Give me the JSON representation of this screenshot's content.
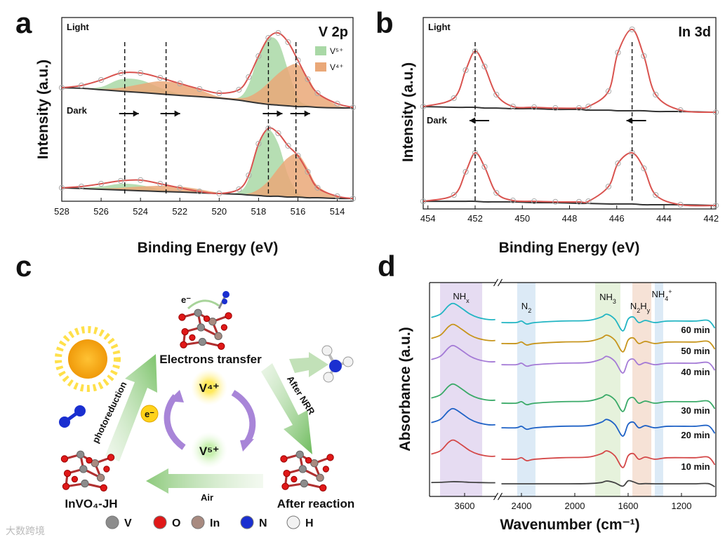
{
  "chart_data": [
    {
      "type": "line",
      "panel": "a",
      "title": "V 2p",
      "xlabel": "Binding Energy (eV)",
      "ylabel": "Intensity (a.u.)",
      "xlim": [
        528,
        513.2
      ],
      "xticks": [
        528,
        526,
        524,
        522,
        520,
        518,
        516,
        514
      ],
      "ylim": [
        0,
        100
      ],
      "fit_color": "#d9534f",
      "background_color": "#333333",
      "marker_color": "#aaaaaa",
      "components": [
        {
          "name": "V⁵⁺",
          "color": "#a9d8a6"
        },
        {
          "name": "V⁴⁺",
          "color": "#eaa878"
        }
      ],
      "x": [
        528,
        527,
        526,
        525,
        524,
        523,
        522,
        521,
        520,
        519,
        518.5,
        518,
        517.5,
        517,
        516.5,
        516,
        515.5,
        515,
        514,
        513.2
      ],
      "spectra": [
        {
          "name": "Light",
          "fit": [
            61.8,
            63.0,
            66.0,
            69.8,
            69.8,
            67.2,
            64.1,
            61.1,
            58.8,
            60.7,
            67.6,
            79.0,
            88.9,
            91.6,
            86.6,
            76.7,
            66.4,
            58.8,
            53.1,
            51.1
          ],
          "background": [
            61.8,
            61.5,
            60.7,
            59.9,
            59.2,
            58.4,
            57.6,
            56.9,
            56.1,
            55.0,
            54.2,
            53.4,
            52.7,
            52.3,
            51.9,
            51.5,
            51.5,
            51.1,
            50.8,
            50.8
          ],
          "components": [
            [
              61.8,
              61.5,
              62.2,
              66.4,
              66.0,
              61.8,
              58.4,
              56.9,
              56.1,
              56.5,
              63.7,
              79.0,
              88.5,
              86.6,
              71.4,
              56.1,
              52.3,
              51.5,
              50.8,
              50.8
            ],
            [
              61.8,
              61.5,
              61.1,
              61.8,
              63.7,
              65.3,
              64.1,
              60.7,
              56.9,
              56.1,
              56.9,
              59.9,
              64.5,
              69.5,
              73.3,
              74.4,
              67.6,
              59.2,
              52.3,
              50.8
            ]
          ]
        },
        {
          "name": "Dark",
          "fit": [
            7.3,
            8.0,
            9.5,
            11.1,
            11.5,
            9.5,
            7.3,
            5.3,
            4.2,
            6.5,
            14.1,
            31.3,
            39.7,
            37.0,
            30.2,
            24.8,
            16.0,
            7.3,
            2.7,
            1.5
          ],
          "background": [
            7.3,
            6.9,
            6.5,
            6.1,
            5.7,
            5.3,
            5.0,
            4.6,
            4.2,
            3.8,
            3.4,
            3.1,
            2.7,
            2.7,
            2.3,
            2.3,
            1.9,
            1.9,
            1.5,
            1.5
          ],
          "components": [
            [
              7.3,
              7.3,
              8.0,
              9.5,
              8.8,
              6.5,
              5.0,
              4.6,
              4.2,
              5.0,
              12.2,
              31.3,
              38.9,
              31.3,
              14.1,
              4.6,
              2.3,
              1.9,
              1.5,
              1.5
            ],
            [
              7.3,
              6.9,
              6.9,
              7.3,
              8.0,
              8.4,
              8.0,
              6.5,
              4.6,
              3.8,
              4.2,
              6.5,
              11.1,
              17.9,
              23.7,
              25.6,
              17.9,
              8.4,
              2.7,
              1.5
            ]
          ]
        }
      ],
      "reference_lines": [
        524.8,
        522.7,
        517.5,
        516.1
      ]
    },
    {
      "type": "line",
      "panel": "b",
      "title": "In 3d",
      "xlabel": "Binding Energy (eV)",
      "ylabel": "Intensity (a.u.)",
      "xlim": [
        454.2,
        441.8
      ],
      "xticks": [
        454,
        452,
        450,
        448,
        446,
        444,
        442
      ],
      "ylim": [
        0,
        100
      ],
      "fit_color": "#d9534f",
      "background_color": "#333333",
      "marker_color": "#aaaaaa",
      "x": [
        454.2,
        452.9,
        452.4,
        452.0,
        451.6,
        451.1,
        450.4,
        449.5,
        448.6,
        447.6,
        447.2,
        446.35,
        445.95,
        445.35,
        444.85,
        444.35,
        443.3,
        441.8
      ],
      "spectra": [
        {
          "name": "Light",
          "fit": [
            53.5,
            57.9,
            72.5,
            82.4,
            74.4,
            59.7,
            53.5,
            53.1,
            52.7,
            52.7,
            53.5,
            61.5,
            81.7,
            93.8,
            79.9,
            59.7,
            51.6,
            50.5
          ],
          "background": [
            53.5,
            53.1,
            53.1,
            53.1,
            52.7,
            52.7,
            52.4,
            52.4,
            52.0,
            52.0,
            51.6,
            51.6,
            51.3,
            51.3,
            51.3,
            50.9,
            50.9,
            50.5
          ]
        },
        {
          "name": "Dark",
          "fit": [
            4.0,
            7.3,
            19.4,
            29.3,
            22.0,
            8.4,
            4.4,
            4.0,
            3.7,
            3.7,
            4.0,
            11.7,
            23.8,
            29.3,
            21.2,
            7.3,
            2.2,
            1.8
          ],
          "background": [
            4.0,
            4.0,
            4.0,
            4.0,
            3.7,
            3.7,
            3.7,
            3.3,
            3.3,
            2.9,
            2.9,
            2.6,
            2.6,
            2.6,
            2.2,
            2.2,
            2.2,
            1.8
          ]
        }
      ],
      "reference_lines": [
        452.0,
        445.35
      ]
    },
    {
      "type": "line",
      "panel": "d",
      "xlabel": "Wavenumber (cm⁻¹)",
      "ylabel": "Absorbance (a.u.)",
      "xlim": [
        [
          3863,
          3363
        ],
        [
          2563,
          942
        ]
      ],
      "xticks": [
        3600,
        2400,
        2000,
        1600,
        1200
      ],
      "ylim": [
        0,
        100
      ],
      "bands": [
        {
          "label": [
            {
              "text": "NH"
            },
            {
              "text": "x",
              "shift": "sub"
            }
          ],
          "range": [
            3784,
            3468
          ],
          "color": "#e6dcf2"
        },
        {
          "label": [
            {
              "text": "N"
            },
            {
              "text": "2",
              "shift": "sub"
            }
          ],
          "range": [
            2432,
            2295
          ],
          "color": "#dceaf6"
        },
        {
          "label": [
            {
              "text": "NH"
            },
            {
              "text": "3",
              "shift": "sub"
            }
          ],
          "range": [
            1847,
            1658
          ],
          "color": "#e6f2dc"
        },
        {
          "label": [
            {
              "text": "N"
            },
            {
              "text": "2",
              "shift": "sub"
            },
            {
              "text": "H"
            },
            {
              "text": "y",
              "shift": "sub"
            }
          ],
          "range": [
            1568,
            1426
          ],
          "color": "#f6e2d6"
        },
        {
          "label": [
            {
              "text": "NH"
            },
            {
              "text": "4",
              "shift": "sub"
            },
            {
              "text": "+",
              "shift": "super"
            }
          ],
          "range": [
            1400,
            1337
          ],
          "color": "#dceaf6"
        }
      ],
      "x": [
        3850,
        3780,
        3720,
        3680,
        3620,
        3560,
        3500,
        3420,
        3370,
        2550,
        2440,
        2400,
        2360,
        2300,
        2100,
        1900,
        1800,
        1760,
        1700,
        1640,
        1600,
        1560,
        1520,
        1470,
        1400,
        1300,
        1100,
        1000,
        950
      ],
      "series": [
        {
          "name": "60 min",
          "color": "#22b5c3",
          "values": [
            83.7,
            85.3,
            89.2,
            90.2,
            87.9,
            85.3,
            83.7,
            82.7,
            82.7,
            81.3,
            81.3,
            82.0,
            80.6,
            81.3,
            82.0,
            82.3,
            83.9,
            85.2,
            82.9,
            77.4,
            82.9,
            83.9,
            81.3,
            82.3,
            81.3,
            82.0,
            82.0,
            82.3,
            78.7
          ]
        },
        {
          "name": "50 min",
          "color": "#c7951c",
          "values": [
            73.9,
            75.5,
            79.4,
            80.4,
            78.1,
            75.5,
            73.9,
            72.9,
            72.9,
            71.5,
            71.5,
            72.2,
            70.8,
            71.5,
            72.2,
            72.5,
            74.1,
            75.4,
            73.1,
            67.6,
            73.1,
            74.1,
            71.5,
            72.5,
            71.5,
            72.2,
            72.2,
            72.5,
            68.9
          ]
        },
        {
          "name": "40 min",
          "color": "#a47ad6",
          "values": [
            64.0,
            65.6,
            69.5,
            70.5,
            68.2,
            65.6,
            64.0,
            63.0,
            63.0,
            61.6,
            61.6,
            62.3,
            60.9,
            61.6,
            62.3,
            62.6,
            64.2,
            65.5,
            63.2,
            57.7,
            63.2,
            64.2,
            61.6,
            62.6,
            61.6,
            62.3,
            62.3,
            62.6,
            59.0
          ]
        },
        {
          "name": "30 min",
          "color": "#3aaa68",
          "values": [
            46.0,
            47.6,
            51.5,
            52.5,
            50.2,
            47.6,
            46.0,
            45.0,
            45.0,
            43.6,
            43.6,
            44.3,
            42.9,
            43.6,
            44.3,
            44.6,
            46.2,
            47.5,
            45.2,
            39.7,
            45.2,
            46.2,
            43.6,
            44.6,
            43.6,
            44.3,
            44.3,
            44.6,
            41.0
          ]
        },
        {
          "name": "20 min",
          "color": "#1f62c6",
          "values": [
            34.5,
            36.1,
            40.0,
            41.0,
            38.7,
            36.1,
            34.5,
            33.5,
            33.5,
            32.1,
            32.1,
            32.8,
            31.4,
            32.1,
            32.8,
            33.1,
            34.7,
            36.0,
            33.7,
            28.2,
            33.7,
            34.7,
            32.1,
            33.1,
            32.1,
            32.8,
            32.8,
            33.1,
            29.5
          ]
        },
        {
          "name": "10 min",
          "color": "#d44848",
          "values": [
            19.8,
            21.4,
            25.3,
            26.3,
            24.0,
            21.4,
            19.8,
            18.8,
            18.8,
            17.4,
            17.4,
            18.1,
            16.7,
            17.4,
            18.1,
            18.4,
            20.0,
            21.3,
            19.0,
            13.5,
            19.0,
            20.0,
            17.4,
            18.4,
            17.4,
            18.1,
            18.1,
            18.4,
            14.8
          ]
        },
        {
          "color": "#444444",
          "values": [
            6.5,
            6.6,
            6.8,
            6.9,
            6.8,
            6.6,
            6.5,
            6.4,
            6.4,
            5.9,
            5.9,
            5.9,
            5.9,
            5.9,
            5.9,
            6.0,
            6.5,
            7.2,
            6.4,
            4.8,
            7.3,
            6.8,
            5.9,
            6.0,
            5.9,
            5.9,
            5.9,
            6.0,
            4.5
          ]
        }
      ]
    }
  ],
  "diagram": {
    "panel": "c",
    "nodes": [
      {
        "label": "Electrons transfer"
      },
      {
        "label": "After reaction"
      },
      {
        "label": "InVO₄-JH"
      }
    ],
    "edges": [
      {
        "label": "After NRR"
      },
      {
        "label": "Air"
      },
      {
        "label": "photoreduction"
      }
    ],
    "cycle": {
      "top": "V⁴⁺",
      "bottom": "V⁵⁺",
      "electron": "e⁻"
    },
    "transfer_label": "e⁻",
    "legend": [
      {
        "label": "V",
        "color": "#8c8c8c"
      },
      {
        "label": "O",
        "color": "#e01818"
      },
      {
        "label": "In",
        "color": "#a88a80"
      },
      {
        "label": "N",
        "color": "#1a2fd0"
      },
      {
        "label": "H",
        "color": "#f2f2f2"
      }
    ]
  },
  "watermark": "大数跨境"
}
